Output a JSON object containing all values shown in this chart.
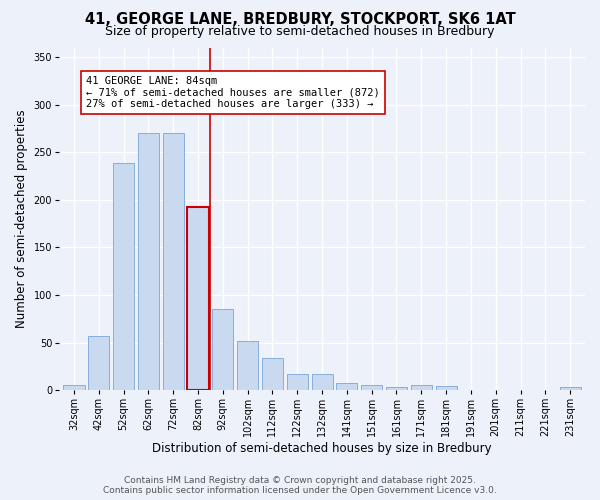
{
  "title_line1": "41, GEORGE LANE, BREDBURY, STOCKPORT, SK6 1AT",
  "title_line2": "Size of property relative to semi-detached houses in Bredbury",
  "xlabel": "Distribution of semi-detached houses by size in Bredbury",
  "ylabel": "Number of semi-detached properties",
  "categories": [
    "32sqm",
    "42sqm",
    "52sqm",
    "62sqm",
    "72sqm",
    "82sqm",
    "92sqm",
    "102sqm",
    "112sqm",
    "122sqm",
    "132sqm",
    "141sqm",
    "151sqm",
    "161sqm",
    "171sqm",
    "181sqm",
    "191sqm",
    "201sqm",
    "211sqm",
    "221sqm",
    "231sqm"
  ],
  "values": [
    5,
    57,
    239,
    270,
    270,
    192,
    85,
    52,
    34,
    17,
    17,
    8,
    5,
    3,
    5,
    4,
    0,
    0,
    0,
    0,
    3
  ],
  "bar_color": "#c9d9f0",
  "bar_edge_color": "#7aa6d9",
  "highlight_bar_index": 5,
  "highlight_bar_edge_color": "#cc0000",
  "vline_color": "#cc0000",
  "annotation_text": "41 GEORGE LANE: 84sqm\n← 71% of semi-detached houses are smaller (872)\n27% of semi-detached houses are larger (333) →",
  "annotation_box_color": "#ffffff",
  "annotation_box_edge_color": "#cc0000",
  "ylim": [
    0,
    360
  ],
  "yticks": [
    0,
    50,
    100,
    150,
    200,
    250,
    300,
    350
  ],
  "background_color": "#edf1fa",
  "plot_bg_color": "#edf1fa",
  "grid_color": "#ffffff",
  "footer_line1": "Contains HM Land Registry data © Crown copyright and database right 2025.",
  "footer_line2": "Contains public sector information licensed under the Open Government Licence v3.0.",
  "title_fontsize": 10.5,
  "subtitle_fontsize": 9,
  "axis_label_fontsize": 8.5,
  "tick_fontsize": 7,
  "annotation_fontsize": 7.5,
  "footer_fontsize": 6.5
}
